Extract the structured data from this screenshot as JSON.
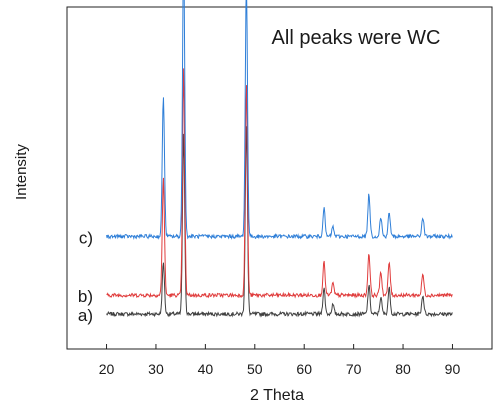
{
  "chart_data": {
    "type": "line",
    "title": "",
    "xlabel": "2 Theta",
    "ylabel": "Intensity",
    "annotation": "All peaks were WC",
    "xlim": [
      12,
      98
    ],
    "xticks": [
      20,
      30,
      40,
      50,
      60,
      70,
      80,
      90
    ],
    "x_range": [
      20,
      90
    ],
    "y_ticks_shown": false,
    "grid": false,
    "legend": "none",
    "series": [
      {
        "name": "a)",
        "color": "#404040",
        "baseline": 0,
        "peaks": [
          [
            31.5,
            0.22
          ],
          [
            35.6,
            0.76
          ],
          [
            48.3,
            0.8
          ],
          [
            64.0,
            0.11
          ],
          [
            65.8,
            0.04
          ],
          [
            73.1,
            0.12
          ],
          [
            75.5,
            0.07
          ],
          [
            77.2,
            0.11
          ],
          [
            84.0,
            0.08
          ]
        ]
      },
      {
        "name": "b)",
        "color": "#e03c3c",
        "baseline": 0.08,
        "peaks": [
          [
            31.5,
            0.5
          ],
          [
            35.6,
            0.96
          ],
          [
            48.3,
            0.9
          ],
          [
            64.0,
            0.14
          ],
          [
            65.8,
            0.05
          ],
          [
            73.1,
            0.18
          ],
          [
            75.5,
            0.1
          ],
          [
            77.2,
            0.14
          ],
          [
            84.0,
            0.09
          ]
        ]
      },
      {
        "name": "c)",
        "color": "#2f7fd8",
        "baseline": 0.33,
        "peaks": [
          [
            31.5,
            0.6
          ],
          [
            35.6,
            1.2
          ],
          [
            48.3,
            1.08
          ],
          [
            64.0,
            0.12
          ],
          [
            65.8,
            0.04
          ],
          [
            73.1,
            0.18
          ],
          [
            75.5,
            0.08
          ],
          [
            77.2,
            0.1
          ],
          [
            84.0,
            0.08
          ]
        ]
      }
    ]
  }
}
